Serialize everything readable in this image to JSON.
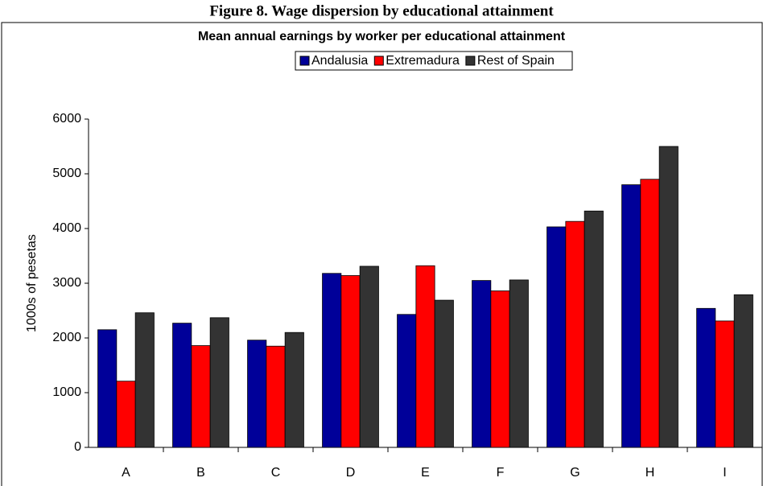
{
  "figure_title": "Figure 8. Wage dispersion by educational attainment",
  "chart_data": {
    "type": "bar",
    "title": "Mean annual earnings by worker per educational attainment",
    "ylabel": "1000s of pesetas",
    "categories": [
      "A",
      "B",
      "C",
      "D",
      "E",
      "F",
      "G",
      "H",
      "I"
    ],
    "series": [
      {
        "name": "Andalusia",
        "color": "#000099",
        "values": [
          2150,
          2270,
          1960,
          3180,
          2430,
          3050,
          4030,
          4800,
          2540
        ]
      },
      {
        "name": "Extremadura",
        "color": "#ff0000",
        "values": [
          1210,
          1860,
          1850,
          3140,
          3320,
          2860,
          4130,
          4900,
          2310
        ]
      },
      {
        "name": "Rest of Spain",
        "color": "#333333",
        "values": [
          2460,
          2370,
          2100,
          3310,
          2690,
          3060,
          4320,
          5500,
          2790
        ]
      }
    ],
    "ylim": [
      0,
      6000
    ],
    "yticks": [
      0,
      1000,
      2000,
      3000,
      4000,
      5000,
      6000
    ],
    "grid": false,
    "legend": "top"
  }
}
